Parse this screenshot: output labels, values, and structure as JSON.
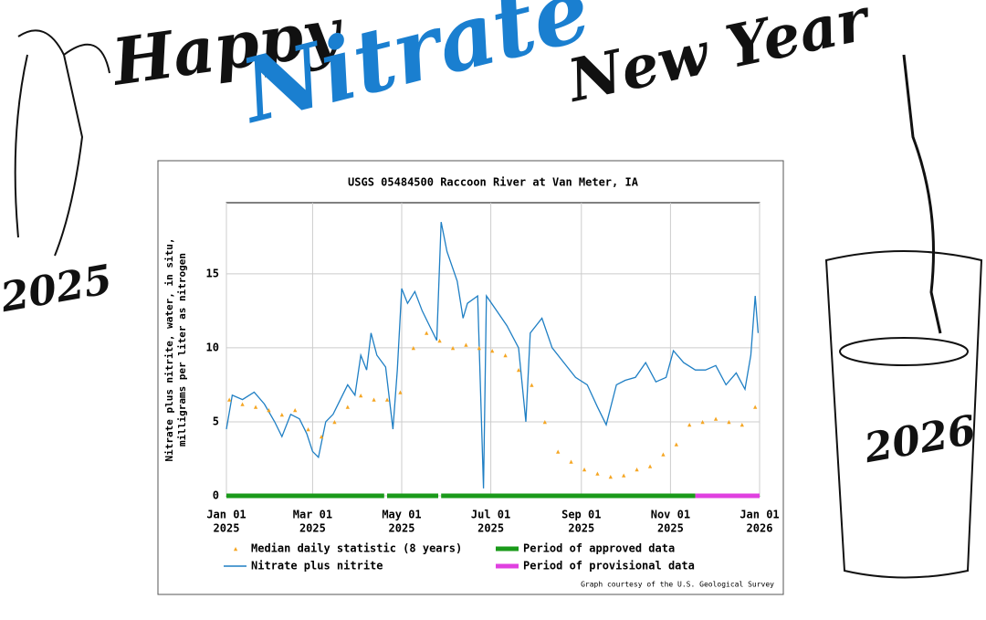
{
  "banner": {
    "happy": "Happy",
    "nitrate": "Nitrate",
    "new_year": "New Year",
    "year_old": "2025",
    "year_new": "2026"
  },
  "chart_data": {
    "type": "line",
    "title": "USGS 05484500 Raccoon River at Van Meter, IA",
    "y_label": [
      "Nitrate plus nitrite, water, in situ,",
      "milligrams per liter as nitrogen"
    ],
    "xlim": [
      "2025-01-01",
      "2026-01-01"
    ],
    "xticks": [
      {
        "value": "2025-01-01",
        "label": [
          "Jan 01",
          "2025"
        ]
      },
      {
        "value": "2025-03-01",
        "label": [
          "Mar 01",
          "2025"
        ]
      },
      {
        "value": "2025-05-01",
        "label": [
          "May 01",
          "2025"
        ]
      },
      {
        "value": "2025-07-01",
        "label": [
          "Jul 01",
          "2025"
        ]
      },
      {
        "value": "2025-09-01",
        "label": [
          "Sep 01",
          "2025"
        ]
      },
      {
        "value": "2025-11-01",
        "label": [
          "Nov 01",
          "2025"
        ]
      },
      {
        "value": "2026-01-01",
        "label": [
          "Jan 01",
          "2026"
        ]
      }
    ],
    "ylim": [
      0,
      19.8
    ],
    "yticks": [
      0,
      5,
      10,
      15
    ],
    "grid": true,
    "series": [
      {
        "name": "Nitrate plus nitrite",
        "color": "#1f7fc4",
        "style": "line",
        "x": [
          "2025-01-01",
          "2025-01-05",
          "2025-01-12",
          "2025-01-20",
          "2025-01-27",
          "2025-02-03",
          "2025-02-08",
          "2025-02-14",
          "2025-02-20",
          "2025-02-25",
          "2025-03-01",
          "2025-03-05",
          "2025-03-10",
          "2025-03-15",
          "2025-03-20",
          "2025-03-25",
          "2025-03-30",
          "2025-04-03",
          "2025-04-07",
          "2025-04-10",
          "2025-04-14",
          "2025-04-20",
          "2025-04-25",
          "2025-04-28",
          "2025-05-01",
          "2025-05-05",
          "2025-05-10",
          "2025-05-15",
          "2025-05-20",
          "2025-05-25",
          "2025-05-28",
          "2025-06-01",
          "2025-06-08",
          "2025-06-12",
          "2025-06-15",
          "2025-06-22",
          "2025-06-26",
          "2025-06-28",
          "2025-07-05",
          "2025-07-12",
          "2025-07-20",
          "2025-07-25",
          "2025-07-28",
          "2025-08-05",
          "2025-08-12",
          "2025-08-20",
          "2025-08-28",
          "2025-09-05",
          "2025-09-12",
          "2025-09-18",
          "2025-09-25",
          "2025-10-01",
          "2025-10-08",
          "2025-10-15",
          "2025-10-22",
          "2025-10-29",
          "2025-11-03",
          "2025-11-10",
          "2025-11-18",
          "2025-11-25",
          "2025-12-02",
          "2025-12-09",
          "2025-12-16",
          "2025-12-22",
          "2025-12-26",
          "2025-12-29",
          "2025-12-31"
        ],
        "values": [
          4.5,
          6.8,
          6.5,
          7.0,
          6.2,
          5.0,
          4.0,
          5.5,
          5.2,
          4.2,
          3.0,
          2.6,
          5.0,
          5.5,
          6.5,
          7.5,
          6.8,
          9.5,
          8.5,
          11.0,
          9.5,
          8.7,
          4.5,
          8.5,
          14.0,
          13.0,
          13.8,
          12.5,
          11.5,
          10.5,
          18.5,
          16.5,
          14.5,
          12.0,
          13.0,
          13.5,
          0.5,
          13.5,
          12.5,
          11.5,
          10.0,
          5.0,
          11.0,
          12.0,
          10.0,
          9.0,
          8.0,
          7.5,
          6.0,
          4.8,
          7.5,
          7.8,
          8.0,
          9.0,
          7.7,
          8.0,
          9.8,
          9.0,
          8.5,
          8.5,
          8.8,
          7.5,
          8.3,
          7.2,
          9.5,
          13.5,
          11.0
        ]
      },
      {
        "name": "Median daily statistic (8 years)",
        "color": "#f5a623",
        "style": "markers",
        "x": [
          "2025-01-03",
          "2025-01-12",
          "2025-01-21",
          "2025-01-30",
          "2025-02-08",
          "2025-02-17",
          "2025-02-26",
          "2025-03-07",
          "2025-03-16",
          "2025-03-25",
          "2025-04-03",
          "2025-04-12",
          "2025-04-21",
          "2025-04-30",
          "2025-05-09",
          "2025-05-18",
          "2025-05-27",
          "2025-06-05",
          "2025-06-14",
          "2025-06-23",
          "2025-07-02",
          "2025-07-11",
          "2025-07-20",
          "2025-07-29",
          "2025-08-07",
          "2025-08-16",
          "2025-08-25",
          "2025-09-03",
          "2025-09-12",
          "2025-09-21",
          "2025-09-30",
          "2025-10-09",
          "2025-10-18",
          "2025-10-27",
          "2025-11-05",
          "2025-11-14",
          "2025-11-23",
          "2025-12-02",
          "2025-12-11",
          "2025-12-20",
          "2025-12-29"
        ],
        "values": [
          6.5,
          6.2,
          6.0,
          5.8,
          5.5,
          5.8,
          4.5,
          4.0,
          5.0,
          6.0,
          6.8,
          6.5,
          6.5,
          7.0,
          10.0,
          11.0,
          10.5,
          10.0,
          10.2,
          10.0,
          9.8,
          9.5,
          8.5,
          7.5,
          5.0,
          3.0,
          2.3,
          1.8,
          1.5,
          1.3,
          1.4,
          1.8,
          2.0,
          2.8,
          3.5,
          4.8,
          5.0,
          5.2,
          5.0,
          4.8,
          6.0
        ]
      }
    ],
    "periods": [
      {
        "name": "Period of approved data",
        "color": "#1a9a1a",
        "ranges": [
          [
            "2025-01-01",
            "2025-04-19"
          ],
          [
            "2025-04-21",
            "2025-05-26"
          ],
          [
            "2025-05-28",
            "2025-11-18"
          ]
        ]
      },
      {
        "name": "Period of provisional data",
        "color": "#e040e0",
        "ranges": [
          [
            "2025-11-18",
            "2026-01-01"
          ]
        ]
      }
    ],
    "credit": "Graph courtesy of the U.S. Geological Survey"
  }
}
